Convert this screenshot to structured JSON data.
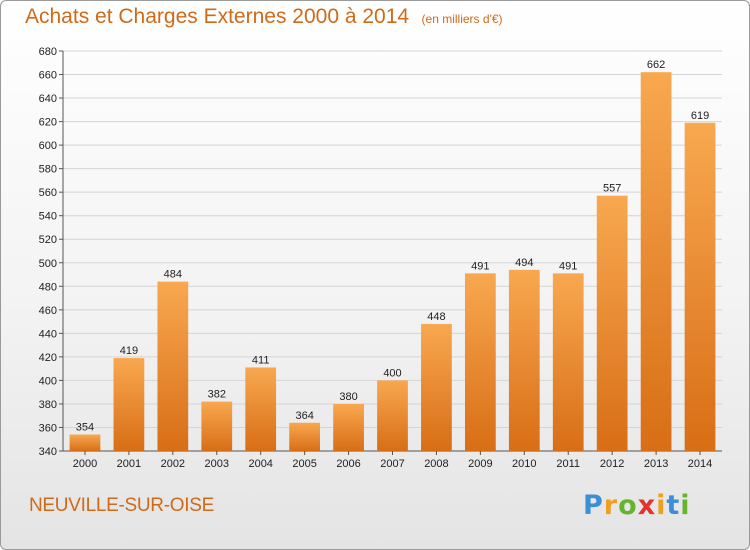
{
  "title": "Achats et Charges Externes 2000 à 2014",
  "unit_note": "(en milliers d'€)",
  "commune": "NEUVILLE-SUR-OISE",
  "logo": {
    "letters": [
      "P",
      "r",
      "o",
      "x",
      "i",
      "t",
      "i"
    ],
    "colors": [
      "#3a8fd8",
      "#f0a020",
      "#66b32e",
      "#e5322b",
      "#f0a020",
      "#3a8fd8",
      "#66b32e"
    ]
  },
  "colors": {
    "accent": "#d06a18",
    "bar_top": "#f8a850",
    "bar_bottom": "#d86e16"
  },
  "chart_data": {
    "type": "bar",
    "title": "Achats et Charges Externes 2000 à 2014",
    "subtitle": "(en milliers d'€)",
    "categories": [
      "2000",
      "2001",
      "2002",
      "2003",
      "2004",
      "2005",
      "2006",
      "2007",
      "2008",
      "2009",
      "2010",
      "2011",
      "2012",
      "2013",
      "2014"
    ],
    "values": [
      354,
      419,
      484,
      382,
      411,
      364,
      380,
      400,
      448,
      491,
      494,
      491,
      557,
      662,
      619
    ],
    "ylim": [
      340,
      680
    ],
    "yticks": [
      340,
      360,
      380,
      400,
      420,
      440,
      460,
      480,
      500,
      520,
      540,
      560,
      580,
      600,
      620,
      640,
      660,
      680
    ],
    "grid": true,
    "xlabel": "",
    "ylabel": ""
  }
}
